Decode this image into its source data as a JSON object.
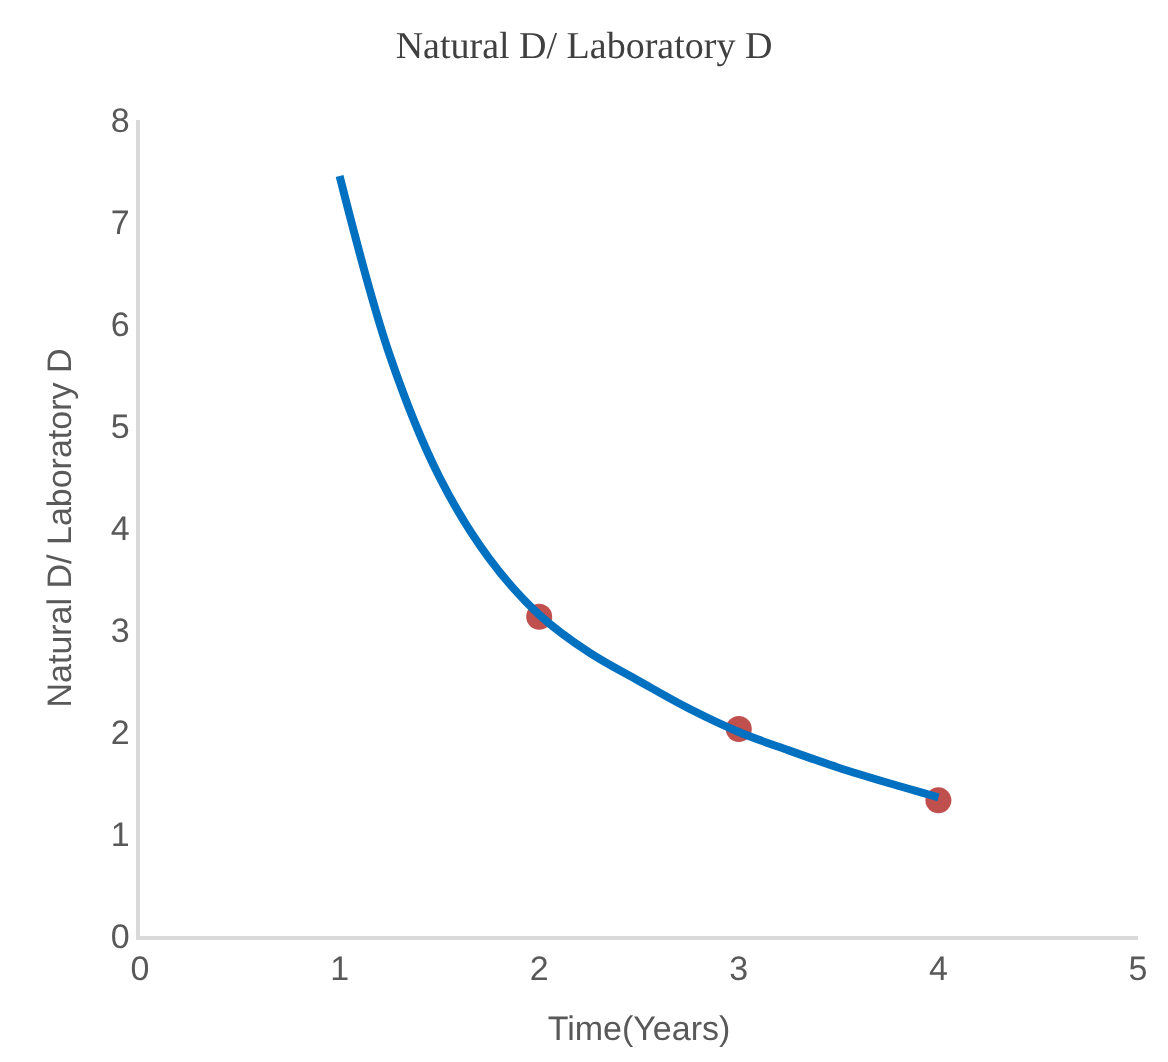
{
  "chart_data": {
    "type": "scatter",
    "title": "Natural D/ Laboratory D",
    "xlabel": "Time(Years)",
    "ylabel": "Natural D/ Laboratory D",
    "xlim": [
      0,
      5
    ],
    "xticks": [
      0,
      1,
      2,
      3,
      4,
      5
    ],
    "ylim": [
      0,
      8
    ],
    "yticks": [
      0,
      1,
      2,
      3,
      4,
      5,
      6,
      7,
      8
    ],
    "series": [
      {
        "color": "#c0504d",
        "marker": "circle",
        "x": [
          2,
          3,
          4
        ],
        "values": [
          3.13,
          2.03,
          1.33
        ]
      },
      {
        "type": "line",
        "color": "#0070c0",
        "marker": "none",
        "x": [
          1,
          1.25,
          1.5,
          1.75,
          2,
          2.25,
          2.5,
          2.75,
          3,
          3.25,
          3.5,
          3.75,
          4
        ],
        "values": [
          7.45,
          5.7,
          4.5,
          3.7,
          3.15,
          2.78,
          2.5,
          2.23,
          2.0,
          1.82,
          1.65,
          1.5,
          1.36
        ]
      }
    ]
  }
}
